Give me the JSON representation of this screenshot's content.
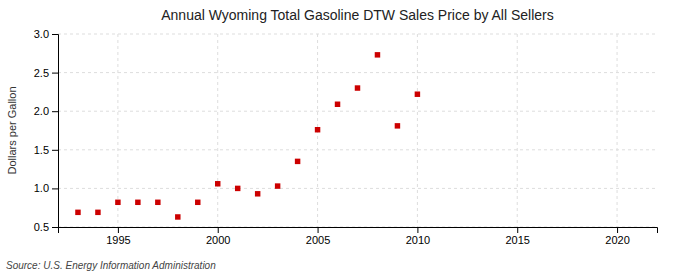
{
  "chart_data": {
    "type": "scatter",
    "title": "Annual Wyoming Total Gasoline DTW Sales Price by All Sellers",
    "ylabel": "Dollars per Gallon",
    "source": "Source: U.S. Energy Information Administration",
    "x": [
      1993,
      1994,
      1995,
      1996,
      1997,
      1998,
      1999,
      2000,
      2001,
      2002,
      2003,
      2004,
      2005,
      2006,
      2007,
      2008,
      2009,
      2010
    ],
    "values": [
      0.69,
      0.69,
      0.82,
      0.82,
      0.82,
      0.63,
      0.82,
      1.06,
      1.0,
      0.93,
      1.03,
      1.35,
      1.76,
      2.09,
      2.3,
      2.73,
      1.81,
      2.22
    ],
    "color": "#cc0000",
    "marker": "square",
    "xlim": [
      1992,
      2022
    ],
    "ylim": [
      0.5,
      3.0
    ],
    "xticks": [
      1995,
      2000,
      2005,
      2010,
      2015,
      2020
    ],
    "yticks": [
      0.5,
      {
        "value": 1.0,
        "label": "1.0"
      },
      1.5,
      {
        "value": 2.0,
        "label": "2.0"
      },
      2.5,
      {
        "value": 3.0,
        "label": "3.0"
      }
    ],
    "grid": true
  }
}
